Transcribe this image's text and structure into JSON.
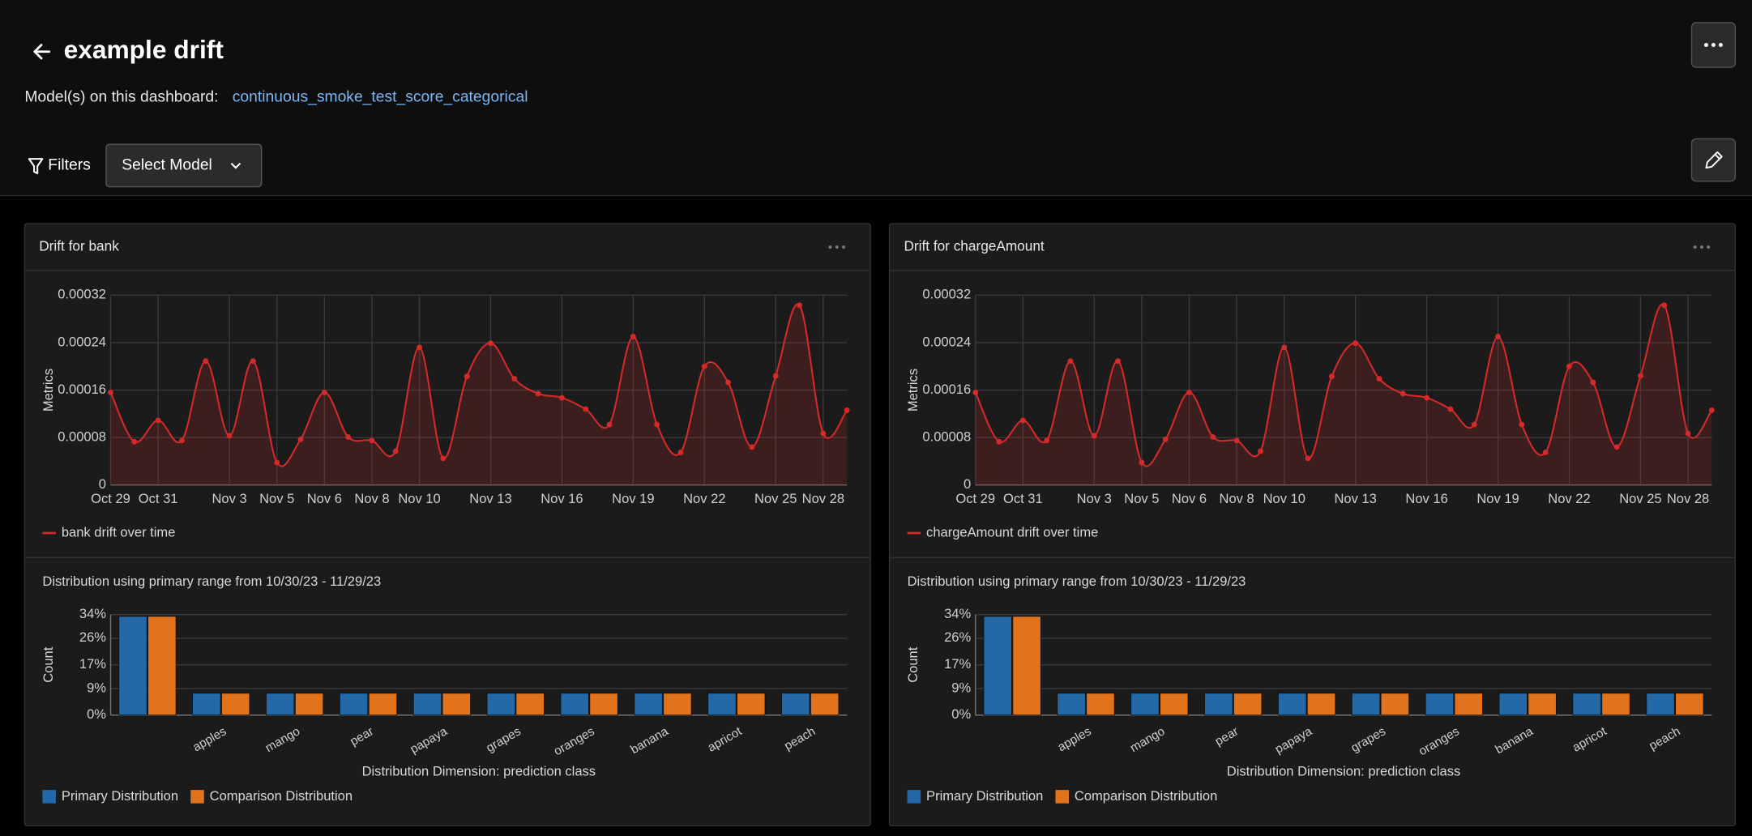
{
  "header": {
    "title": "example drift",
    "models_label": "Model(s) on this dashboard:",
    "model": "continuous_smoke_test_score_categorical"
  },
  "filters": {
    "label": "Filters",
    "select": "Select Model"
  },
  "panels": [
    {
      "title": "Drift for bank",
      "line_chart": {
        "type": "line",
        "y_label": "Metrics",
        "categories": [
          "Oct 29",
          null,
          "Oct 31",
          null,
          null,
          "Nov 3",
          null,
          "Nov 5",
          null,
          "Nov 6",
          null,
          "Nov 8",
          null,
          "Nov 10",
          null,
          null,
          "Nov 13",
          null,
          null,
          "Nov 16",
          null,
          null,
          "Nov 19",
          null,
          null,
          "Nov 22",
          null,
          null,
          "Nov 25",
          null,
          "Nov 28",
          null
        ],
        "series": [
          {
            "name": "bank drift over time",
            "color": "#d42a2a",
            "values": [
              0.000156,
              7.3e-05,
              0.000109,
              7.5e-05,
              0.000209,
              8.3e-05,
              0.000209,
              3.8e-05,
              7.7e-05,
              0.000156,
              8.1e-05,
              7.5e-05,
              5.7e-05,
              0.000232,
              4.5e-05,
              0.000183,
              0.000239,
              0.000179,
              0.000154,
              0.000147,
              0.000128,
              0.000102,
              0.00025,
              0.000102,
              5.5e-05,
              0.0002,
              0.000173,
              6.4e-05,
              0.000184,
              0.000303,
              8.7e-05,
              0.000126
            ]
          }
        ],
        "ylim": [
          0,
          0.00032
        ],
        "yticks": [
          0,
          8e-05,
          0.00016,
          0.00024,
          0.00032
        ],
        "grid": true
      },
      "bar_chart": {
        "type": "bar",
        "title": "Distribution using primary range from 10/30/23 - 11/29/23",
        "x_label": "Distribution Dimension: prediction class",
        "y_label": "Count",
        "categories": [
          null,
          "apples",
          "mango",
          "pear",
          "papaya",
          "grapes",
          "oranges",
          "banana",
          "apricot",
          "peach"
        ],
        "series": [
          {
            "name": "Primary Distribution",
            "color": "#2369a8",
            "values": [
              33.4,
              7.4,
              7.4,
              7.4,
              7.4,
              7.4,
              7.4,
              7.4,
              7.4,
              7.4
            ]
          },
          {
            "name": "Comparison Distribution",
            "color": "#e2731d",
            "values": [
              33.4,
              7.4,
              7.4,
              7.4,
              7.4,
              7.4,
              7.4,
              7.4,
              7.4,
              7.4
            ]
          }
        ],
        "ylim": [
          0,
          34
        ],
        "yticks": [
          {
            "value": 0,
            "label": "0%"
          },
          {
            "value": 9,
            "label": "9%"
          },
          {
            "value": 17,
            "label": "17%"
          },
          {
            "value": 26,
            "label": "26%"
          },
          {
            "value": 34,
            "label": "34%"
          }
        ],
        "grid": true
      }
    },
    {
      "title": "Drift for chargeAmount",
      "line_chart": {
        "type": "line",
        "y_label": "Metrics",
        "categories": [
          "Oct 29",
          null,
          "Oct 31",
          null,
          null,
          "Nov 3",
          null,
          "Nov 5",
          null,
          "Nov 6",
          null,
          "Nov 8",
          null,
          "Nov 10",
          null,
          null,
          "Nov 13",
          null,
          null,
          "Nov 16",
          null,
          null,
          "Nov 19",
          null,
          null,
          "Nov 22",
          null,
          null,
          "Nov 25",
          null,
          "Nov 28",
          null
        ],
        "series": [
          {
            "name": "chargeAmount drift over time",
            "color": "#d42a2a",
            "values": [
              0.000156,
              7.3e-05,
              0.000109,
              7.5e-05,
              0.000209,
              8.3e-05,
              0.000209,
              3.8e-05,
              7.7e-05,
              0.000156,
              8.1e-05,
              7.5e-05,
              5.7e-05,
              0.000232,
              4.5e-05,
              0.000183,
              0.000239,
              0.000179,
              0.000154,
              0.000147,
              0.000128,
              0.000102,
              0.00025,
              0.000102,
              5.5e-05,
              0.0002,
              0.000173,
              6.4e-05,
              0.000184,
              0.000303,
              8.7e-05,
              0.000126
            ]
          }
        ],
        "ylim": [
          0,
          0.00032
        ],
        "yticks": [
          0,
          8e-05,
          0.00016,
          0.00024,
          0.00032
        ],
        "grid": true
      },
      "bar_chart": {
        "type": "bar",
        "title": "Distribution using primary range from 10/30/23 - 11/29/23",
        "x_label": "Distribution Dimension: prediction class",
        "y_label": "Count",
        "categories": [
          null,
          "apples",
          "mango",
          "pear",
          "papaya",
          "grapes",
          "oranges",
          "banana",
          "apricot",
          "peach"
        ],
        "series": [
          {
            "name": "Primary Distribution",
            "color": "#2369a8",
            "values": [
              33.4,
              7.4,
              7.4,
              7.4,
              7.4,
              7.4,
              7.4,
              7.4,
              7.4,
              7.4
            ]
          },
          {
            "name": "Comparison Distribution",
            "color": "#e2731d",
            "values": [
              33.4,
              7.4,
              7.4,
              7.4,
              7.4,
              7.4,
              7.4,
              7.4,
              7.4,
              7.4
            ]
          }
        ],
        "ylim": [
          0,
          34
        ],
        "yticks": [
          {
            "value": 0,
            "label": "0%"
          },
          {
            "value": 9,
            "label": "9%"
          },
          {
            "value": 17,
            "label": "17%"
          },
          {
            "value": 26,
            "label": "26%"
          },
          {
            "value": 34,
            "label": "34%"
          }
        ],
        "grid": true
      }
    }
  ]
}
